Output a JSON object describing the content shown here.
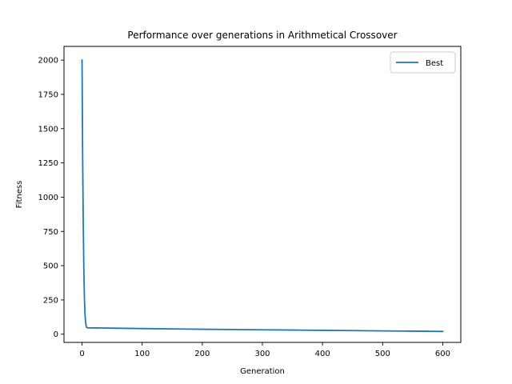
{
  "chart_data": {
    "type": "line",
    "title": "Performance over generations in Arithmetical Crossover",
    "xlabel": "Generation",
    "ylabel": "Fitness",
    "xlim": [
      -30,
      630
    ],
    "ylim": [
      -60,
      2100
    ],
    "xticks": [
      0,
      100,
      200,
      300,
      400,
      500,
      600
    ],
    "yticks": [
      0,
      250,
      500,
      750,
      1000,
      1250,
      1500,
      1750,
      2000
    ],
    "grid": false,
    "legend": "top-right",
    "series": [
      {
        "name": "Best",
        "color": "#1f77b4",
        "x": [
          0,
          1,
          2,
          3,
          4,
          5,
          6,
          7,
          8,
          10,
          15,
          25,
          50,
          100,
          150,
          200,
          250,
          300,
          350,
          400,
          450,
          500,
          550,
          600
        ],
        "y": [
          2000,
          1300,
          820,
          480,
          260,
          140,
          85,
          58,
          48,
          46,
          46,
          45.5,
          44,
          41,
          38.5,
          36,
          34,
          32,
          30,
          28,
          26,
          24,
          22,
          20
        ]
      }
    ]
  }
}
